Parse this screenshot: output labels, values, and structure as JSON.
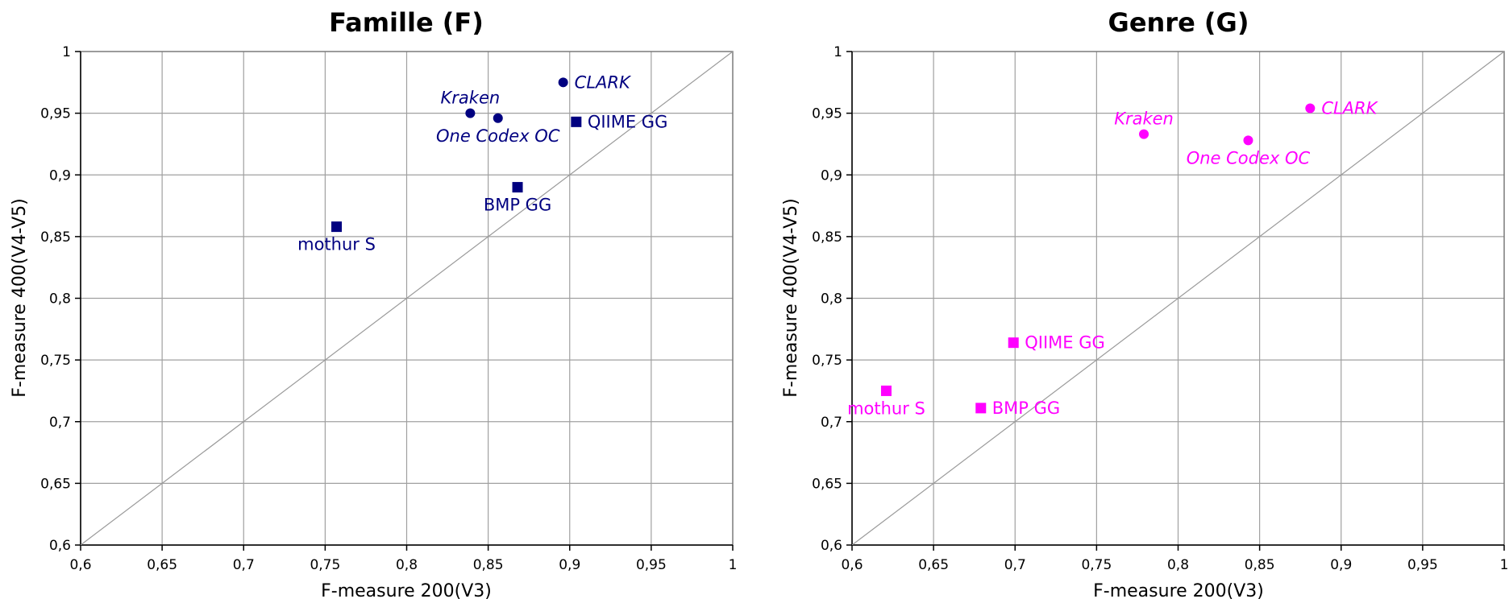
{
  "chart_data": [
    {
      "type": "scatter",
      "title": "Famille (F)",
      "xlabel": "F-measure 200(V3)",
      "ylabel": "F-measure 400(V4-V5)",
      "xlim": [
        0.6,
        1.0
      ],
      "ylim": [
        0.6,
        1.0
      ],
      "x_ticks": [
        "0,6",
        "0,65",
        "0,7",
        "0,75",
        "0,8",
        "0,85",
        "0,9",
        "0,95",
        "1"
      ],
      "y_ticks": [
        "0,6",
        "0,65",
        "0,7",
        "0,75",
        "0,8",
        "0,85",
        "0,9",
        "0,95",
        "1"
      ],
      "grid": true,
      "diagonal": true,
      "color": "#000080",
      "points": [
        {
          "label": "CLARK",
          "x": 0.896,
          "y": 0.975,
          "marker": "circle",
          "italic": true,
          "label_pos": "right"
        },
        {
          "label": "Kraken",
          "x": 0.839,
          "y": 0.95,
          "marker": "circle",
          "italic": true,
          "label_pos": "above"
        },
        {
          "label": "One Codex OC",
          "x": 0.856,
          "y": 0.946,
          "marker": "circle",
          "italic": true,
          "label_pos": "below"
        },
        {
          "label": "QIIME GG",
          "x": 0.904,
          "y": 0.943,
          "marker": "square",
          "italic": false,
          "label_pos": "right"
        },
        {
          "label": "BMP GG",
          "x": 0.868,
          "y": 0.89,
          "marker": "square",
          "italic": false,
          "label_pos": "below"
        },
        {
          "label": "mothur S",
          "x": 0.757,
          "y": 0.858,
          "marker": "square",
          "italic": false,
          "label_pos": "below"
        }
      ]
    },
    {
      "type": "scatter",
      "title": "Genre (G)",
      "xlabel": "F-measure 200(V3)",
      "ylabel": "F-measure 400(V4-V5)",
      "xlim": [
        0.6,
        1.0
      ],
      "ylim": [
        0.6,
        1.0
      ],
      "x_ticks": [
        "0,6",
        "0,65",
        "0,7",
        "0,75",
        "0,8",
        "0,85",
        "0,9",
        "0,95",
        "1"
      ],
      "y_ticks": [
        "0,6",
        "0,65",
        "0,7",
        "0,75",
        "0,8",
        "0,85",
        "0,9",
        "0,95",
        "1"
      ],
      "grid": true,
      "diagonal": true,
      "color": "#ff00ff",
      "points": [
        {
          "label": "CLARK",
          "x": 0.881,
          "y": 0.954,
          "marker": "circle",
          "italic": true,
          "label_pos": "right"
        },
        {
          "label": "Kraken",
          "x": 0.779,
          "y": 0.933,
          "marker": "circle",
          "italic": true,
          "label_pos": "above"
        },
        {
          "label": "One Codex OC",
          "x": 0.843,
          "y": 0.928,
          "marker": "circle",
          "italic": true,
          "label_pos": "below"
        },
        {
          "label": "QIIME GG",
          "x": 0.699,
          "y": 0.764,
          "marker": "square",
          "italic": false,
          "label_pos": "right"
        },
        {
          "label": "mothur S",
          "x": 0.621,
          "y": 0.725,
          "marker": "square",
          "italic": false,
          "label_pos": "below"
        },
        {
          "label": "BMP GG",
          "x": 0.679,
          "y": 0.711,
          "marker": "square",
          "italic": false,
          "label_pos": "right"
        }
      ]
    }
  ]
}
